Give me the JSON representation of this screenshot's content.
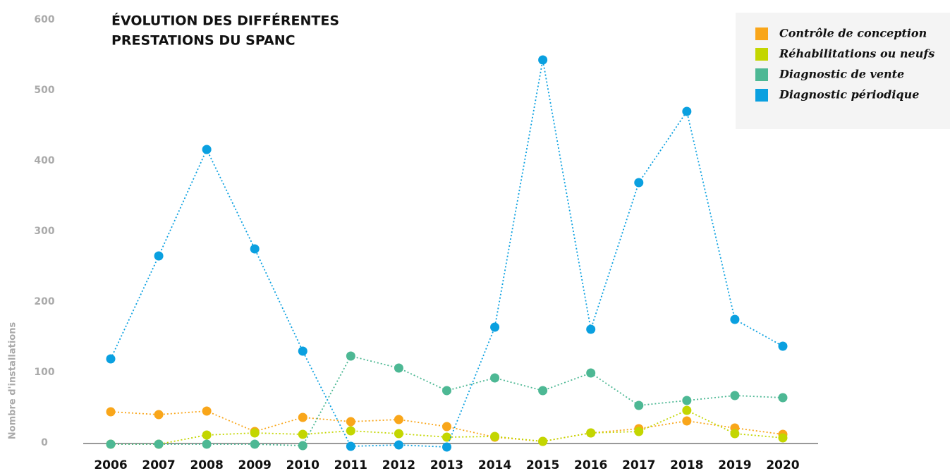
{
  "chart_data": {
    "type": "line",
    "title": [
      "ÉVOLUTION DES DIFFÉRENTES",
      "PRESTATIONS DU SPANC"
    ],
    "y_label": "Nombre d'installations",
    "categories": [
      "2006",
      "2007",
      "2008",
      "2009",
      "2010",
      "2011",
      "2012",
      "2013",
      "2014",
      "2015",
      "2016",
      "2017",
      "2018",
      "2019",
      "2020"
    ],
    "series": [
      {
        "name": "Contrôle de conception",
        "color": "#f9a61a",
        "values": [
          44,
          40,
          45,
          16,
          36,
          30,
          33,
          23,
          8,
          2,
          14,
          20,
          31,
          21,
          12
        ]
      },
      {
        "name": "Réhabilitations ou neufs",
        "color": "#c3d600",
        "values": [
          -2,
          -2,
          11,
          14,
          12,
          17,
          13,
          8,
          9,
          2,
          14,
          16,
          46,
          13,
          7
        ]
      },
      {
        "name": "Diagnostic de vente",
        "color": "#4db894",
        "values": [
          -2,
          -2,
          -2,
          -2,
          -4,
          123,
          106,
          74,
          92,
          74,
          99,
          53,
          60,
          67,
          64
        ]
      },
      {
        "name": "Diagnostic périodique",
        "color": "#0aa0e0",
        "values": [
          119,
          265,
          416,
          275,
          130,
          -5,
          -3,
          -6,
          164,
          543,
          161,
          369,
          470,
          175,
          137
        ]
      }
    ],
    "ylim": [
      0,
      600
    ],
    "yticks": [
      0,
      100,
      200,
      300,
      400,
      500,
      600
    ],
    "legend": "top-right"
  }
}
